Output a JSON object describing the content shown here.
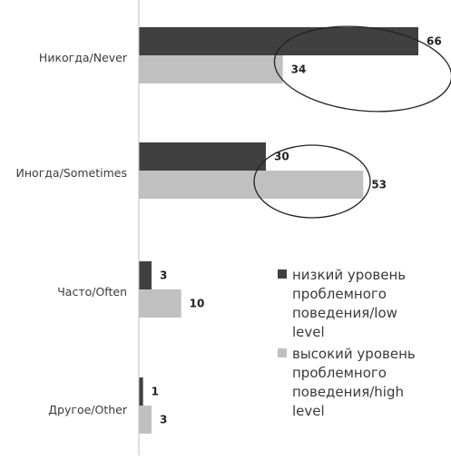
{
  "chart_data": {
    "type": "bar",
    "orientation": "horizontal",
    "categories": [
      "Никогда/Never",
      "Иногда/Sometimes",
      "Часто/Often",
      "Другое/Other"
    ],
    "series": [
      {
        "name": "низкий уровень проблемного поведения/low level",
        "color": "#404040",
        "values": [
          66,
          30,
          3,
          1
        ]
      },
      {
        "name": "высокий уровень проблемного поведения/high level",
        "color": "#c0c0c0",
        "values": [
          34,
          53,
          10,
          3
        ]
      }
    ],
    "xlim": [
      0,
      66
    ],
    "grid": false,
    "legend_position": "bottom-right",
    "annotations": [
      "ellipse around Никогда/Never bar values",
      "ellipse around Иногда/Sometimes bar values"
    ]
  }
}
